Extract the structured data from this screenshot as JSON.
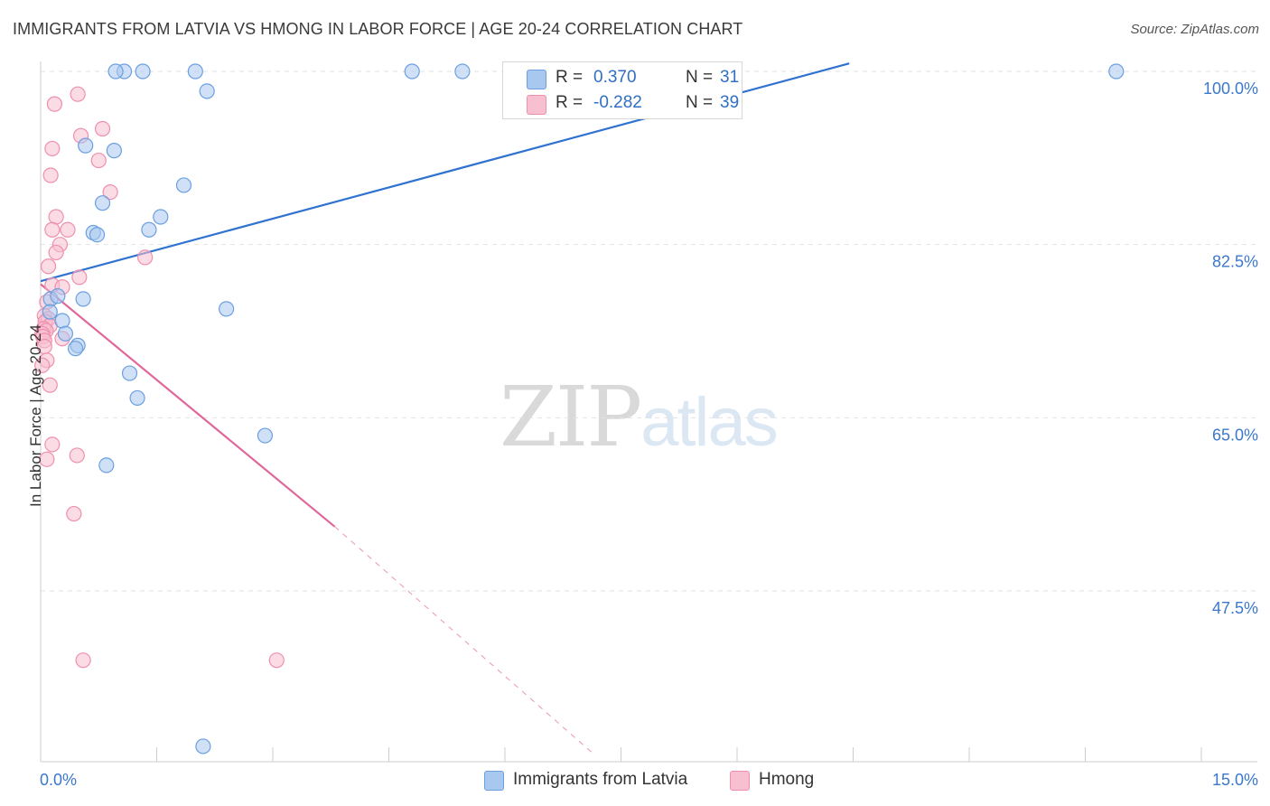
{
  "title": "IMMIGRANTS FROM LATVIA VS HMONG IN LABOR FORCE | AGE 20-24 CORRELATION CHART",
  "source": "Source: ZipAtlas.com",
  "watermark": {
    "zip": "ZIP",
    "atlas": "atlas"
  },
  "legend": {
    "series1": {
      "r_label": "R =",
      "r_value": "0.370",
      "n_label": "N =",
      "n_value": "31"
    },
    "series2": {
      "r_label": "R =",
      "r_value": "-0.282",
      "n_label": "N =",
      "n_value": "39"
    }
  },
  "colors": {
    "latvia_fill": "#a9c8f0",
    "latvia_stroke": "#6b9fe0",
    "latvia_line": "#2f72d0",
    "hmong_fill": "#f8bfd0",
    "hmong_stroke": "#ef8fae",
    "hmong_line": "#e0679a",
    "tick_label": "#3b78cc",
    "grid": "#e2e2e2"
  },
  "chart_data": {
    "type": "scatter",
    "title": "IMMIGRANTS FROM LATVIA VS HMONG IN LABOR FORCE | AGE 20-24 CORRELATION CHART",
    "xlabel": "",
    "ylabel": "In Labor Force | Age 20-24",
    "xlim": [
      0,
      15
    ],
    "ylim": [
      31,
      100
    ],
    "x_tick_labels": [
      "0.0%",
      "15.0%"
    ],
    "y_ticks": [
      100,
      82.5,
      65,
      47.5
    ],
    "y_tick_labels": [
      "100.0%",
      "82.5%",
      "65.0%",
      "47.5%"
    ],
    "grid": true,
    "legend_position": "top-center",
    "series": [
      {
        "name": "Immigrants from Latvia",
        "color": "#a9c8f0",
        "points": [
          [
            1.08,
            101.5
          ],
          [
            0.97,
            100.3
          ],
          [
            1.32,
            100.0
          ],
          [
            2.0,
            101.5
          ],
          [
            4.8,
            101.5
          ],
          [
            5.45,
            101.5
          ],
          [
            7.0,
            101.5
          ],
          [
            13.9,
            101.5
          ],
          [
            2.15,
            98.0
          ],
          [
            0.58,
            92.5
          ],
          [
            0.95,
            92.0
          ],
          [
            1.85,
            88.5
          ],
          [
            0.8,
            86.7
          ],
          [
            1.55,
            85.3
          ],
          [
            1.4,
            84.0
          ],
          [
            0.68,
            83.7
          ],
          [
            0.73,
            83.5
          ],
          [
            0.13,
            77.0
          ],
          [
            0.55,
            77.0
          ],
          [
            0.22,
            77.3
          ],
          [
            2.4,
            76.0
          ],
          [
            0.12,
            75.7
          ],
          [
            0.28,
            74.8
          ],
          [
            0.32,
            73.5
          ],
          [
            0.48,
            72.3
          ],
          [
            0.45,
            72.0
          ],
          [
            1.15,
            69.5
          ],
          [
            1.25,
            67.0
          ],
          [
            2.9,
            63.2
          ],
          [
            0.85,
            60.2
          ],
          [
            2.1,
            31.8
          ]
        ]
      },
      {
        "name": "Hmong",
        "color": "#f8bfd0",
        "points": [
          [
            0.18,
            96.7
          ],
          [
            0.48,
            97.7
          ],
          [
            0.52,
            93.5
          ],
          [
            0.8,
            94.2
          ],
          [
            0.15,
            92.2
          ],
          [
            0.75,
            91.0
          ],
          [
            0.13,
            89.5
          ],
          [
            0.9,
            87.8
          ],
          [
            0.2,
            85.3
          ],
          [
            0.15,
            84.0
          ],
          [
            0.35,
            84.0
          ],
          [
            0.25,
            82.5
          ],
          [
            0.2,
            81.7
          ],
          [
            1.35,
            81.2
          ],
          [
            0.1,
            80.3
          ],
          [
            0.5,
            79.2
          ],
          [
            0.15,
            78.4
          ],
          [
            0.28,
            78.2
          ],
          [
            0.08,
            76.7
          ],
          [
            0.05,
            75.3
          ],
          [
            0.1,
            75.0
          ],
          [
            0.06,
            74.7
          ],
          [
            0.12,
            74.3
          ],
          [
            0.04,
            74.0
          ],
          [
            0.07,
            73.8
          ],
          [
            0.02,
            73.5
          ],
          [
            0.03,
            73.2
          ],
          [
            0.28,
            73.0
          ],
          [
            0.05,
            72.8
          ],
          [
            0.05,
            72.2
          ],
          [
            0.08,
            70.8
          ],
          [
            0.02,
            70.3
          ],
          [
            0.12,
            68.3
          ],
          [
            0.15,
            62.3
          ],
          [
            0.47,
            61.2
          ],
          [
            0.08,
            60.8
          ],
          [
            0.43,
            55.3
          ],
          [
            0.55,
            40.5
          ],
          [
            3.05,
            40.5
          ]
        ]
      }
    ],
    "trend_lines": [
      {
        "series": "Immigrants from Latvia",
        "from": [
          0,
          78.8
        ],
        "to": [
          10.45,
          100.8
        ],
        "style": "solid"
      },
      {
        "series": "Hmong",
        "from": [
          0,
          78.5
        ],
        "to": [
          3.8,
          54.0
        ],
        "style": "solid"
      },
      {
        "series": "Hmong",
        "from": [
          3.8,
          54.0
        ],
        "to": [
          7.15,
          31.0
        ],
        "style": "dashed"
      }
    ]
  }
}
